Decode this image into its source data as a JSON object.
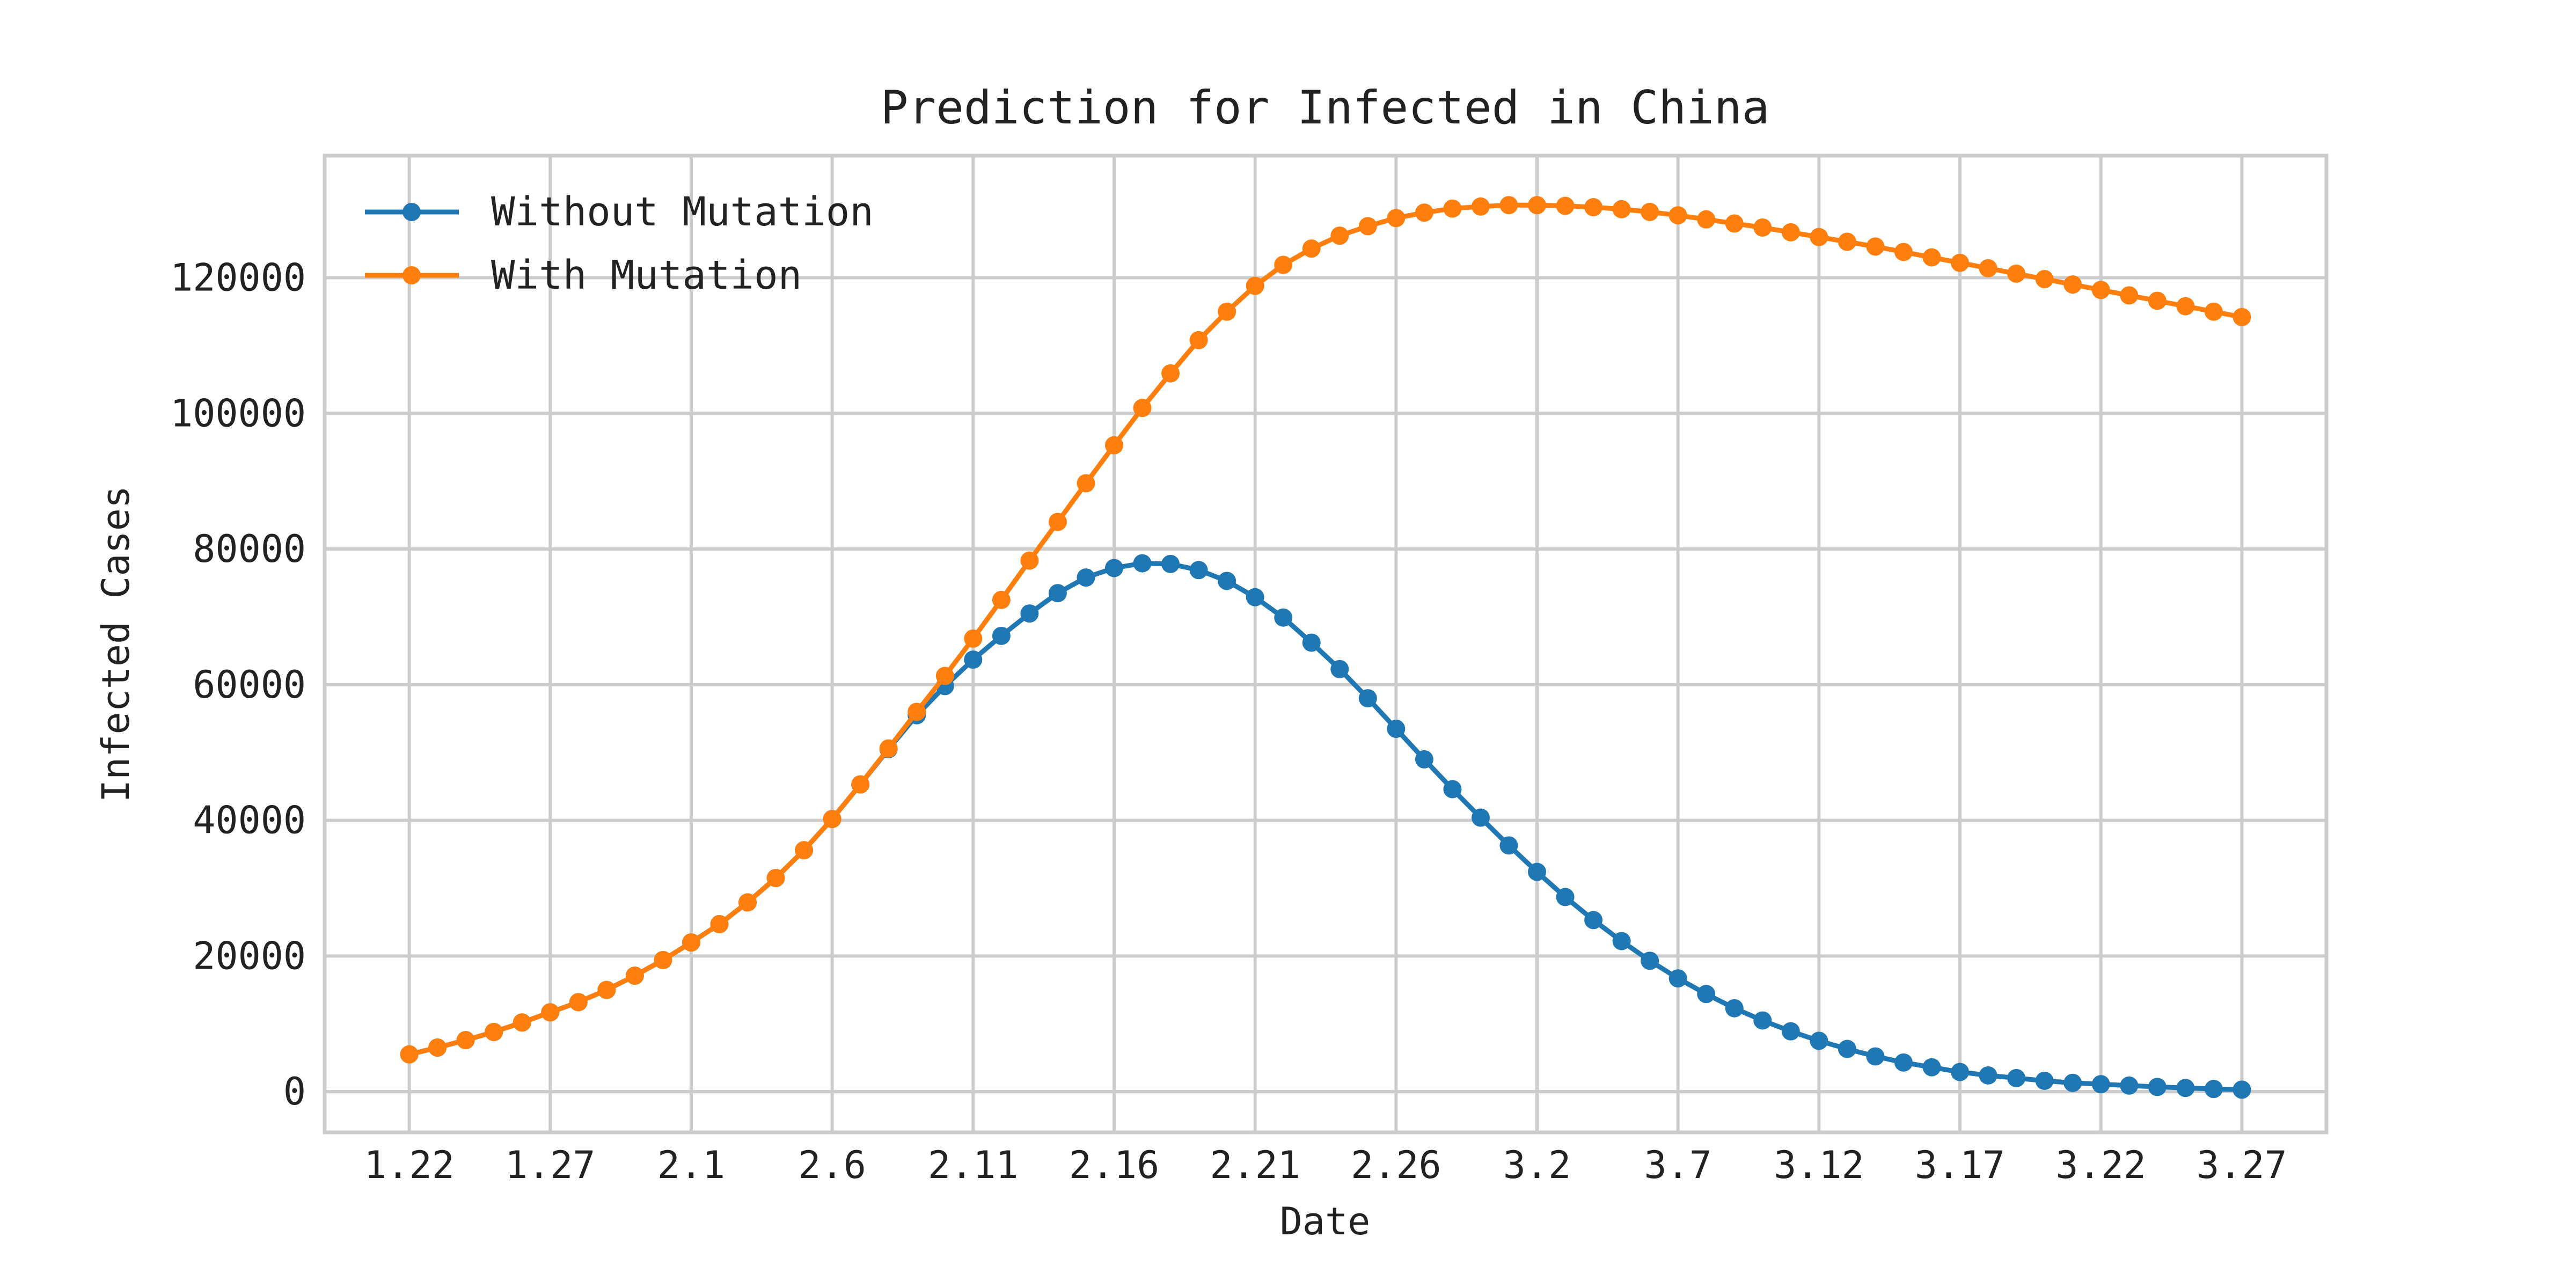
{
  "chart_data": {
    "type": "line",
    "title": "Prediction for Infected in China",
    "xlabel": "Date",
    "ylabel": "Infected Cases",
    "x_ticks": [
      "1.22",
      "1.27",
      "2.1",
      "2.6",
      "2.11",
      "2.16",
      "2.21",
      "2.26",
      "3.2",
      "3.7",
      "3.12",
      "3.17",
      "3.22",
      "3.27"
    ],
    "x_tick_spacing_days": 5,
    "point_count": 66,
    "xlim_days": [
      -3,
      68
    ],
    "ylim": [
      -6000,
      138000
    ],
    "y_ticks": [
      0,
      20000,
      40000,
      60000,
      80000,
      100000,
      120000
    ],
    "grid": true,
    "legend_position": "top-left",
    "series": [
      {
        "name": "Without Mutation",
        "color": "#1f77b4",
        "values": [
          5500,
          6500,
          7600,
          8800,
          10200,
          11700,
          13200,
          15000,
          17100,
          19400,
          22000,
          24700,
          27900,
          31500,
          35600,
          40200,
          45300,
          50500,
          55500,
          59800,
          63700,
          67200,
          70500,
          73500,
          75800,
          77200,
          77900,
          77800,
          76900,
          75300,
          72900,
          69900,
          66200,
          62300,
          58000,
          53500,
          49000,
          44600,
          40400,
          36300,
          32400,
          28700,
          25300,
          22200,
          19300,
          16700,
          14400,
          12300,
          10500,
          8900,
          7500,
          6300,
          5200,
          4300,
          3600,
          2900,
          2400,
          2000,
          1600,
          1300,
          1100,
          900,
          700,
          550,
          400,
          300
        ]
      },
      {
        "name": "With Mutation",
        "color": "#ff7f0e",
        "values": [
          5500,
          6500,
          7600,
          8800,
          10200,
          11700,
          13200,
          15000,
          17100,
          19400,
          22000,
          24700,
          27900,
          31500,
          35600,
          40200,
          45300,
          50600,
          56000,
          61300,
          66800,
          72500,
          78300,
          84000,
          89700,
          95300,
          100800,
          105900,
          110800,
          115000,
          118800,
          121900,
          124300,
          126200,
          127600,
          128800,
          129600,
          130200,
          130500,
          130700,
          130700,
          130600,
          130400,
          130100,
          129700,
          129200,
          128600,
          128000,
          127400,
          126700,
          126000,
          125300,
          124600,
          123800,
          123000,
          122200,
          121400,
          120600,
          119800,
          119000,
          118200,
          117400,
          116600,
          115800,
          115000,
          114200
        ]
      }
    ]
  }
}
